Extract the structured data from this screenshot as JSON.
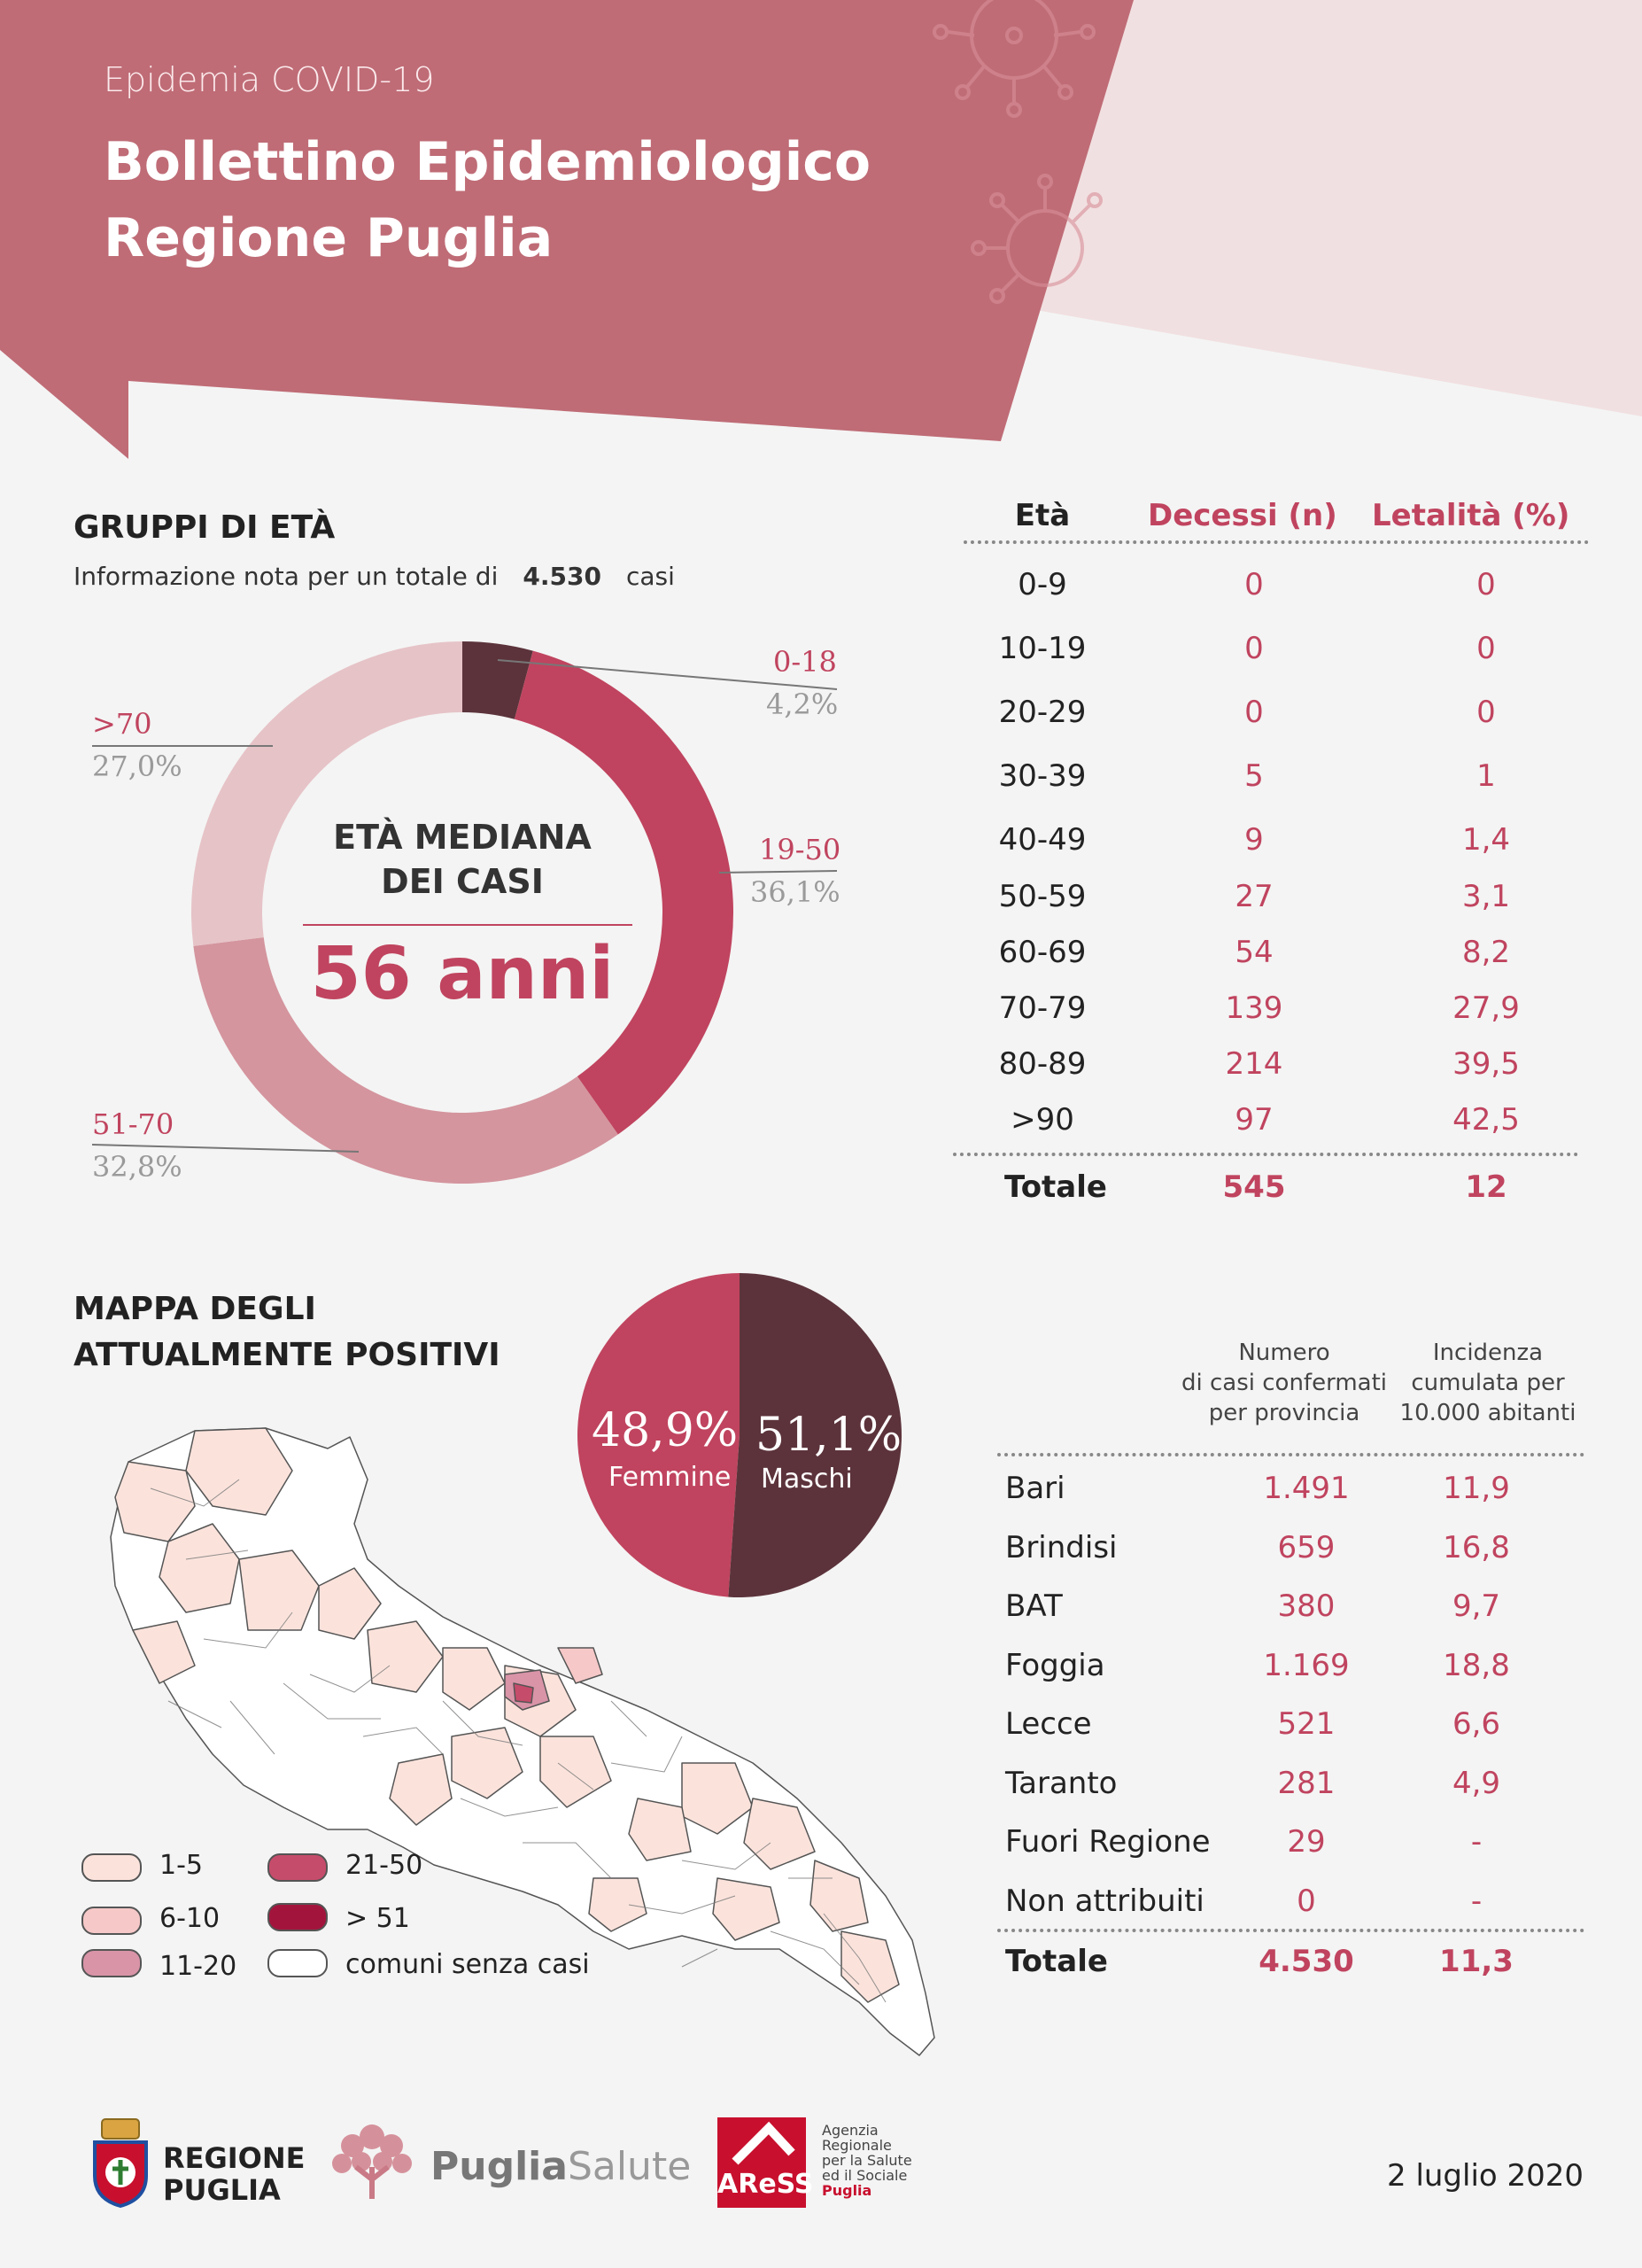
{
  "header": {
    "supertitle": "Epidemia COVID-19",
    "title_line1": "Bollettino Epidemiologico",
    "title_line2": "Regione Puglia",
    "color": "#bf6c76"
  },
  "age_groups": {
    "title": "GRUPPI DI ETÀ",
    "info_prefix": "Informazione nota per un totale di",
    "info_total": "4.530",
    "info_suffix": "casi",
    "center_caption_1": "ETÀ MEDIANA",
    "center_caption_2": "DEI CASI",
    "center_value": "56 anni"
  },
  "chart_data": [
    {
      "type": "pie",
      "subtype": "donut",
      "categories": [
        "0-18",
        "19-50",
        "51-70",
        ">70"
      ],
      "values": [
        4.2,
        36.1,
        32.8,
        27.0
      ],
      "value_labels": [
        "4,2%",
        "36,1%",
        "32,8%",
        "27,0%"
      ],
      "colors": [
        "#5c333b",
        "#c0445f",
        "#d4959e",
        "#e6c3c7"
      ]
    },
    {
      "type": "pie",
      "categories": [
        "Femmine",
        "Maschi"
      ],
      "values": [
        48.9,
        51.1
      ],
      "value_labels": [
        "48,9%",
        "51,1%"
      ],
      "colors": [
        "#c0445f",
        "#5c333b"
      ]
    },
    {
      "type": "table",
      "columns": [
        "Età",
        "Decessi (n)",
        "Letalità (%)"
      ],
      "rows": [
        [
          "0-9",
          "0",
          "0"
        ],
        [
          "10-19",
          "0",
          "0"
        ],
        [
          "20-29",
          "0",
          "0"
        ],
        [
          "30-39",
          "5",
          "1"
        ],
        [
          "40-49",
          "9",
          "1,4"
        ],
        [
          "50-59",
          "27",
          "3,1"
        ],
        [
          "60-69",
          "54",
          "8,2"
        ],
        [
          "70-79",
          "139",
          "27,9"
        ],
        [
          "80-89",
          "214",
          "39,5"
        ],
        [
          ">90",
          "97",
          "42,5"
        ]
      ],
      "total": [
        "Totale",
        "545",
        "12"
      ]
    },
    {
      "type": "table",
      "columns": [
        "",
        "Numero di casi confermati per provincia",
        "Incidenza cumulata per 10.000 abitanti"
      ],
      "rows": [
        [
          "Bari",
          "1.491",
          "11,9"
        ],
        [
          "Brindisi",
          "659",
          "16,8"
        ],
        [
          "BAT",
          "380",
          "9,7"
        ],
        [
          "Foggia",
          "1.169",
          "18,8"
        ],
        [
          "Lecce",
          "521",
          "6,6"
        ],
        [
          "Taranto",
          "281",
          "4,9"
        ],
        [
          "Fuori Regione",
          "29",
          "-"
        ],
        [
          "Non attribuiti",
          "0",
          "-"
        ]
      ],
      "total": [
        "Totale",
        "4.530",
        "11,3"
      ]
    }
  ],
  "province_headers": {
    "cases_1": "Numero",
    "cases_2": "di casi confermati",
    "cases_3": "per provincia",
    "inc_1": "Incidenza",
    "inc_2": "cumulata per",
    "inc_3": "10.000 abitanti"
  },
  "map": {
    "title_1": "MAPPA DEGLI",
    "title_2": "ATTUALMENTE POSITIVI",
    "legend": [
      {
        "label": "1-5",
        "color": "#fbe3dc"
      },
      {
        "label": "6-10",
        "color": "#f6c8c8"
      },
      {
        "label": "11-20",
        "color": "#d994a8"
      },
      {
        "label": "21-50",
        "color": "#c64c6b"
      },
      {
        "label": "> 51",
        "color": "#a3143c"
      },
      {
        "label": "comuni senza casi",
        "color": "#ffffff"
      }
    ]
  },
  "footer": {
    "regione_1": "REGIONE",
    "regione_2": "PUGLIA",
    "puglia_a": "Puglia",
    "puglia_b": "Salute",
    "aress": "AReSS",
    "agency_1": "Agenzia",
    "agency_2": "Regionale",
    "agency_3": "per la Salute",
    "agency_4": "ed il Sociale",
    "agency_5": "Puglia",
    "date": "2 luglio 2020"
  }
}
